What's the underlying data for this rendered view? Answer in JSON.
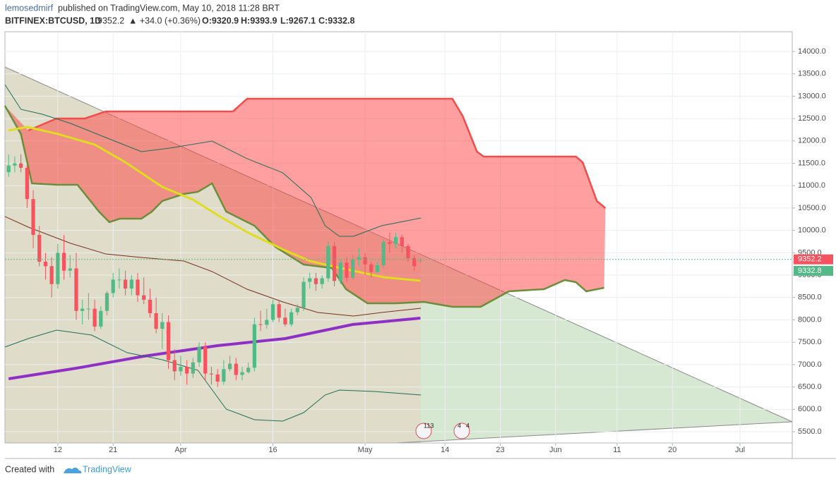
{
  "header": {
    "author": "lemosedmirf",
    "published": "published on TradingView.com, May 10, 2018 11:28 BRT",
    "symbol": "BITFINEX:BTCUSD, 1D",
    "last": "9352.2",
    "change": "▲ +34.0 (+0.36%)",
    "open": "O:9320.9",
    "high": "H:9393.9",
    "low": "L:9267.1",
    "close": "C:9332.8"
  },
  "chart_data": {
    "type": "candlestick",
    "x": [
      3,
      4,
      5,
      6,
      7,
      8,
      9,
      10,
      11,
      12,
      13,
      14,
      15,
      16,
      17,
      18,
      19,
      20,
      21,
      22,
      23,
      24,
      25,
      26,
      27,
      28,
      29,
      30,
      31,
      32,
      33,
      34,
      35,
      36,
      37,
      38,
      39,
      40,
      41,
      42,
      43,
      44,
      45,
      46,
      47,
      48,
      49,
      50,
      51,
      52,
      53,
      54,
      55,
      56,
      57,
      58,
      59,
      60,
      61,
      62,
      63,
      64,
      65,
      66,
      67,
      68,
      69,
      70
    ],
    "open": [
      11300,
      11450,
      11500,
      11400,
      10700,
      9900,
      9300,
      9200,
      8800,
      9500,
      9100,
      9150,
      8200,
      8250,
      8250,
      7850,
      8200,
      8600,
      8900,
      8900,
      8700,
      8900,
      8550,
      8450,
      8150,
      7800,
      7950,
      7100,
      6850,
      6950,
      6800,
      7050,
      7400,
      6800,
      6780,
      6620,
      6900,
      7020,
      6770,
      6830,
      6930,
      7900,
      7890,
      8000,
      8350,
      8050,
      7900,
      8170,
      8270,
      8850,
      8930,
      8800,
      8930,
      9650,
      8870,
      9280,
      8940,
      9350,
      9400,
      9240,
      9070,
      9220,
      9740,
      9700,
      9850,
      9650,
      9380,
      9320.9
    ],
    "high": [
      11700,
      11650,
      11700,
      11450,
      10900,
      10100,
      9500,
      9400,
      9700,
      9900,
      9450,
      9500,
      8450,
      8600,
      8450,
      8300,
      8650,
      9050,
      9150,
      9100,
      9000,
      9050,
      8950,
      8700,
      8500,
      8150,
      8100,
      7350,
      7200,
      7100,
      7150,
      7500,
      7500,
      6950,
      6900,
      7100,
      7200,
      7150,
      6950,
      7050,
      8050,
      8200,
      8250,
      8450,
      8450,
      8250,
      8250,
      8350,
      8950,
      9050,
      9050,
      9000,
      9750,
      9750,
      9350,
      9400,
      9450,
      9600,
      9500,
      9300,
      9300,
      9800,
      9950,
      9950,
      9900,
      9700,
      9450,
      9393.9
    ],
    "low": [
      11200,
      11300,
      11300,
      10500,
      9600,
      9200,
      8900,
      8500,
      8700,
      8900,
      8950,
      8000,
      7900,
      8000,
      7750,
      7800,
      8100,
      8500,
      8700,
      8550,
      8550,
      8400,
      8350,
      8050,
      7700,
      7350,
      6900,
      6650,
      6750,
      6550,
      6700,
      6950,
      6650,
      6550,
      6500,
      6550,
      6850,
      6650,
      6650,
      6800,
      6850,
      7750,
      7800,
      7950,
      7950,
      7850,
      7850,
      8100,
      8200,
      8700,
      8650,
      8700,
      8850,
      8750,
      8800,
      8850,
      8900,
      9200,
      9000,
      8950,
      9050,
      9150,
      9500,
      9600,
      9500,
      9300,
      9100,
      9267.1
    ],
    "close": [
      11450,
      11500,
      11400,
      10700,
      9900,
      9300,
      9200,
      8800,
      9500,
      9100,
      9150,
      8200,
      8250,
      8250,
      7850,
      8200,
      8600,
      8900,
      8900,
      8700,
      8900,
      8550,
      8450,
      8150,
      7800,
      7950,
      7100,
      6850,
      6950,
      6800,
      7050,
      7400,
      6800,
      6780,
      6620,
      6900,
      7020,
      6770,
      6830,
      6930,
      7900,
      7890,
      8000,
      8350,
      8050,
      7900,
      8170,
      8270,
      8850,
      8930,
      8800,
      8930,
      9650,
      8870,
      9280,
      8940,
      9350,
      9400,
      9240,
      9070,
      9220,
      9740,
      9700,
      9850,
      9650,
      9380,
      9200,
      9332.8
    ],
    "up_color": "#53b987",
    "down_color": "#f6535f",
    "xlim": [
      2.4,
      130.5
    ],
    "xticks": [
      {
        "value": 11,
        "label": "12"
      },
      {
        "value": 20,
        "label": "21"
      },
      {
        "value": 31,
        "label": "Apr"
      },
      {
        "value": 46,
        "label": "16"
      },
      {
        "value": 61,
        "label": "May"
      },
      {
        "value": 74,
        "label": "14"
      },
      {
        "value": 83,
        "label": "23"
      },
      {
        "value": 92,
        "label": "Jun"
      },
      {
        "value": 102,
        "label": "11"
      },
      {
        "value": 111,
        "label": "20"
      },
      {
        "value": 122,
        "label": "Jul"
      }
    ],
    "ylim": [
      5248,
      14441
    ],
    "yticks": [
      {
        "value": 5500,
        "label": "5500.0"
      },
      {
        "value": 6000,
        "label": "6000.0"
      },
      {
        "value": 6500,
        "label": "6500.0"
      },
      {
        "value": 7000,
        "label": "7000.0"
      },
      {
        "value": 7500,
        "label": "7500.0"
      },
      {
        "value": 8000,
        "label": "8000.0"
      },
      {
        "value": 8500,
        "label": "8500.0"
      },
      {
        "value": 9000,
        "label": "9000.0"
      },
      {
        "value": 9500,
        "label": "9500.0"
      },
      {
        "value": 10000,
        "label": "10000.0"
      },
      {
        "value": 10500,
        "label": "10500.0"
      },
      {
        "value": 11000,
        "label": "11000.0"
      },
      {
        "value": 11500,
        "label": "11500.0"
      },
      {
        "value": 12000,
        "label": "12000.0"
      },
      {
        "value": 12500,
        "label": "12500.0"
      },
      {
        "value": 13000,
        "label": "13000.0"
      },
      {
        "value": 13500,
        "label": "13500.0"
      },
      {
        "value": 14000,
        "label": "14000.0"
      }
    ],
    "grid": true,
    "cloud": {
      "color": "#ff4040",
      "upper": {
        "color": "#f44b4b",
        "x": [
          6.2,
          10.8,
          15.4,
          18.8,
          39.5,
          41.8,
          75.2,
          76.9,
          79.2,
          80.3,
          95.3,
          96.4,
          98.7,
          100.1
        ],
        "values": [
          12234,
          12502,
          12502,
          12660,
          12660,
          12943,
          12943,
          12549,
          11761,
          11650,
          11650,
          11524,
          10657,
          10499
        ]
      },
      "lower": {
        "color": "#6b8e3a",
        "x": [
          2.4,
          5,
          6.8,
          10.8,
          14.2,
          17.7,
          19.4,
          21.1,
          24.6,
          26.3,
          28,
          31.5,
          33.8,
          36.1,
          38.4,
          43,
          46.4,
          51,
          55.6,
          57.9,
          61.4,
          66,
          70.6,
          75.2,
          79.8,
          84.4,
          90.1,
          93.5,
          95.3,
          97,
          99.9
        ],
        "values": [
          12786,
          12155,
          11051,
          11020,
          11020,
          10420,
          10184,
          10262,
          10262,
          10420,
          10657,
          10814,
          10862,
          11051,
          10420,
          10105,
          9631,
          9237,
          9158,
          8686,
          8370,
          8370,
          8402,
          8291,
          8291,
          8638,
          8686,
          8891,
          8843,
          8638,
          8717
        ]
      }
    },
    "overlays": [
      {
        "color": "#e0dc20",
        "width": 3,
        "x": [
          3,
          6,
          11,
          17,
          22,
          28,
          33,
          37,
          42,
          48,
          52,
          57,
          64,
          70
        ],
        "values": [
          12234,
          12313,
          12155,
          11918,
          11524,
          10972,
          10688,
          10341,
          9947,
          9552,
          9316,
          9158,
          8953,
          8874
        ]
      },
      {
        "color": "#8e2fc6",
        "width": 4,
        "x": [
          3,
          14,
          25,
          37,
          48,
          59,
          70
        ],
        "values": [
          6683,
          6919,
          7187,
          7424,
          7582,
          7897,
          8039
        ]
      },
      {
        "color": "#1f6e5a",
        "width": 1,
        "x": [
          2.4,
          5,
          8.5,
          13.1,
          18.8,
          24.6,
          29.2,
          36.1,
          41.8,
          47.6,
          52.2,
          54.5,
          56.8,
          59.1,
          63.7,
          70.1
        ],
        "values": [
          13259,
          12707,
          12596,
          12391,
          12076,
          11760,
          11839,
          11997,
          11603,
          11288,
          10736,
          10105,
          9868,
          9868,
          10105,
          10278
        ]
      },
      {
        "color": "#1f6e5a",
        "width": 1,
        "x": [
          2.4,
          6.2,
          10.8,
          16.5,
          22.3,
          28,
          33.8,
          38.4,
          43,
          47.6,
          51,
          54.5,
          56.8,
          62.5,
          70.1
        ],
        "values": [
          7392,
          7582,
          7771,
          7660,
          7266,
          7109,
          6872,
          6005,
          5768,
          5737,
          5926,
          6320,
          6430,
          6399,
          6320
        ]
      },
      {
        "color": "#7a2f1e",
        "width": 1,
        "x": [
          2.4,
          6.2,
          13.1,
          18.8,
          24.6,
          31.5,
          36.1,
          41.8,
          47.6,
          53.3,
          59.1,
          63.7,
          70.1
        ],
        "values": [
          10310,
          10073,
          9711,
          9474,
          9395,
          9316,
          9080,
          8685,
          8402,
          8165,
          8086,
          8165,
          8260
        ]
      }
    ],
    "price_labels": [
      {
        "value": 9352.2,
        "label": "9352.2",
        "color": "#f6535f"
      },
      {
        "value": 9332.8,
        "label": "9332.8",
        "color": "#53b987"
      }
    ],
    "events": [
      "113",
      "4",
      "4"
    ]
  },
  "footer": {
    "created": "Created with",
    "brand": "TradingView"
  }
}
